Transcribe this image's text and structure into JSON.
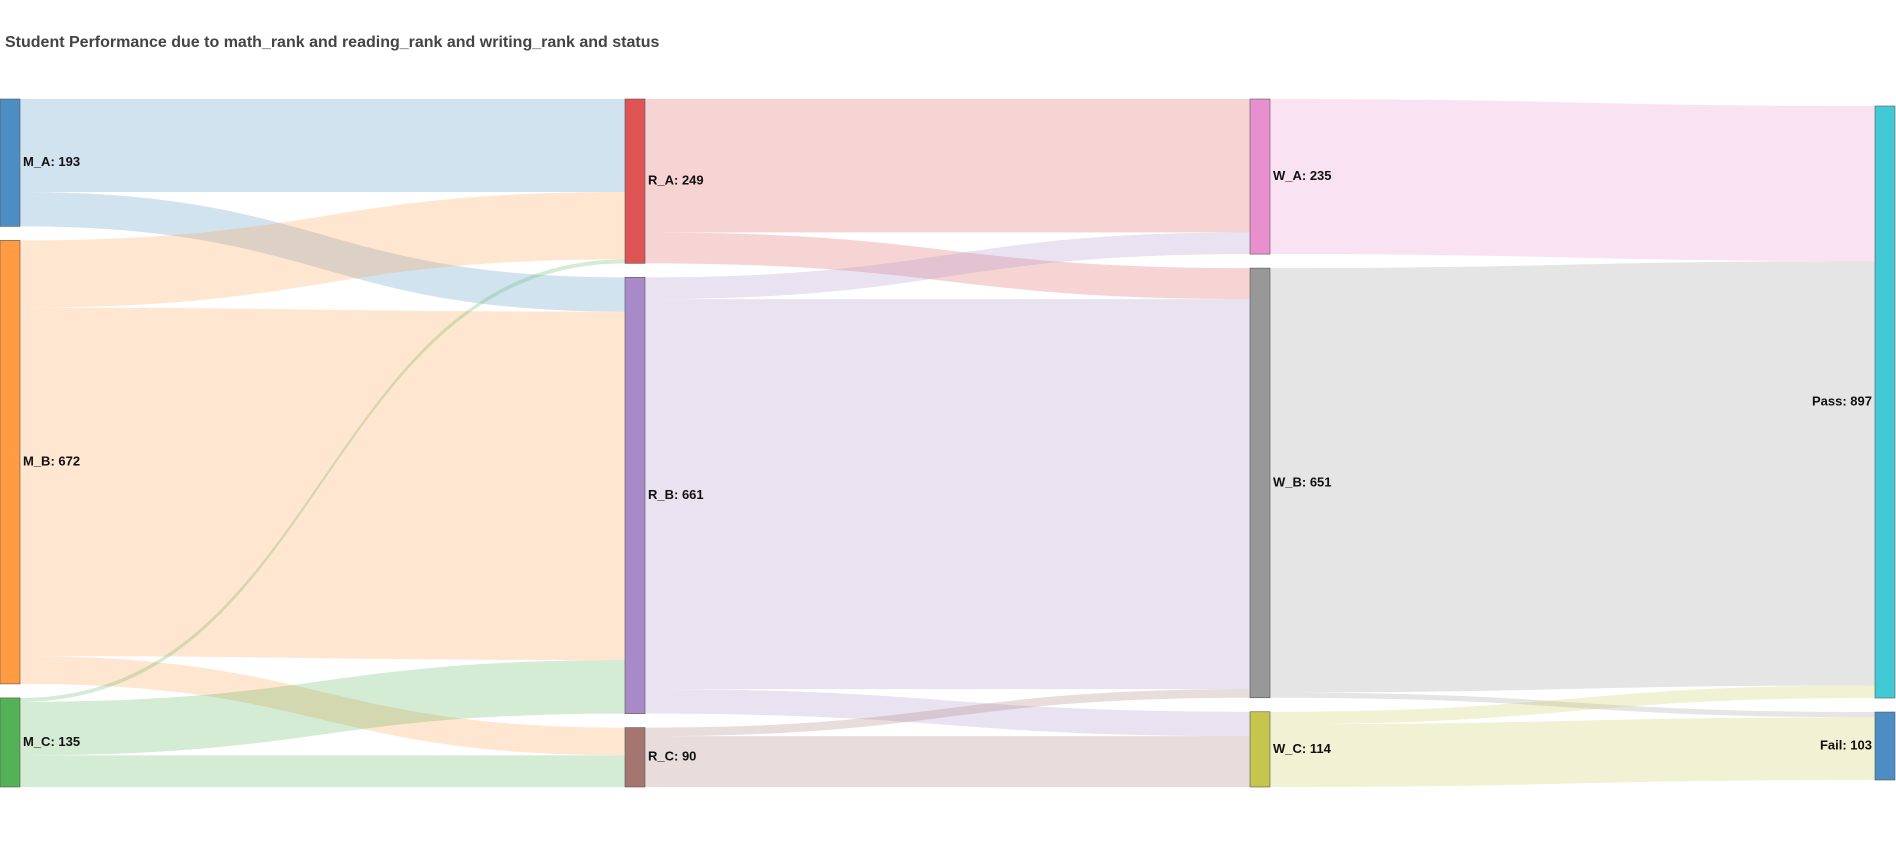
{
  "chart_data": {
    "type": "sankey",
    "title": "Student Performance due to math_rank and reading_rank and writing_rank and status",
    "nodes": [
      {
        "id": "M_A",
        "label": "M_A: 193",
        "value": 193,
        "color": "#4c8ec3"
      },
      {
        "id": "M_B",
        "label": "M_B: 672",
        "value": 672,
        "color": "#ff9b42"
      },
      {
        "id": "M_C",
        "label": "M_C: 135",
        "value": 135,
        "color": "#55b155"
      },
      {
        "id": "R_A",
        "label": "R_A: 249",
        "value": 249,
        "color": "#de5353"
      },
      {
        "id": "R_B",
        "label": "R_B: 661",
        "value": 661,
        "color": "#a88ac8"
      },
      {
        "id": "R_C",
        "label": "R_C: 90",
        "value": 90,
        "color": "#a57670"
      },
      {
        "id": "W_A",
        "label": "W_A: 235",
        "value": 235,
        "color": "#e890ce"
      },
      {
        "id": "W_B",
        "label": "W_B: 651",
        "value": 651,
        "color": "#989898"
      },
      {
        "id": "W_C",
        "label": "W_C: 114",
        "value": 114,
        "color": "#c6c64e"
      },
      {
        "id": "Pass",
        "label": "Pass: 897",
        "value": 897,
        "color": "#41c9d5"
      },
      {
        "id": "Fail",
        "label": "Fail: 103",
        "value": 103,
        "color": "#4c8ec3"
      }
    ],
    "columns": [
      [
        "M_A",
        "M_B",
        "M_C"
      ],
      [
        "R_A",
        "R_B",
        "R_C"
      ],
      [
        "W_A",
        "W_B",
        "W_C"
      ],
      [
        "Pass",
        "Fail"
      ]
    ],
    "links": [
      {
        "source": "M_A",
        "target": "R_A",
        "value": 141
      },
      {
        "source": "M_A",
        "target": "R_B",
        "value": 52
      },
      {
        "source": "M_B",
        "target": "R_A",
        "value": 102
      },
      {
        "source": "M_B",
        "target": "R_B",
        "value": 528
      },
      {
        "source": "M_B",
        "target": "R_C",
        "value": 42
      },
      {
        "source": "M_C",
        "target": "R_A",
        "value": 6
      },
      {
        "source": "M_C",
        "target": "R_B",
        "value": 81
      },
      {
        "source": "M_C",
        "target": "R_C",
        "value": 48
      },
      {
        "source": "R_A",
        "target": "W_A",
        "value": 202
      },
      {
        "source": "R_A",
        "target": "W_B",
        "value": 47
      },
      {
        "source": "R_B",
        "target": "W_A",
        "value": 33
      },
      {
        "source": "R_B",
        "target": "W_B",
        "value": 591
      },
      {
        "source": "R_B",
        "target": "W_C",
        "value": 37
      },
      {
        "source": "R_C",
        "target": "W_B",
        "value": 13
      },
      {
        "source": "R_C",
        "target": "W_C",
        "value": 77
      },
      {
        "source": "W_A",
        "target": "Pass",
        "value": 235
      },
      {
        "source": "W_B",
        "target": "Pass",
        "value": 643
      },
      {
        "source": "W_B",
        "target": "Fail",
        "value": 8
      },
      {
        "source": "W_C",
        "target": "Pass",
        "value": 19
      },
      {
        "source": "W_C",
        "target": "Fail",
        "value": 95
      }
    ]
  }
}
